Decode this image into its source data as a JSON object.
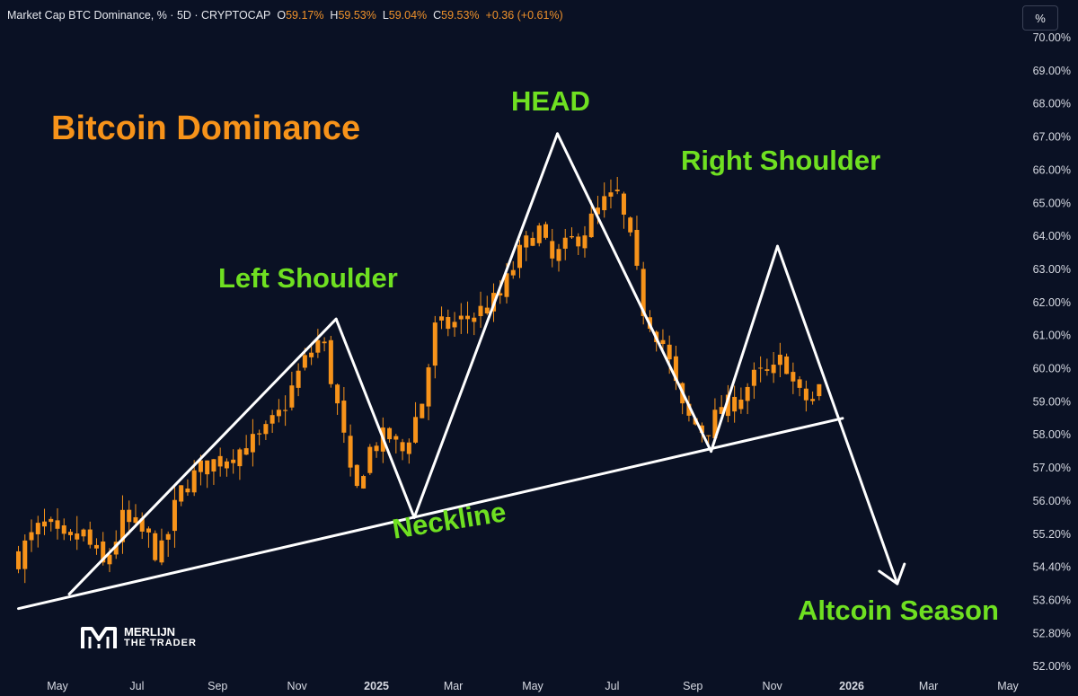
{
  "header": {
    "symbol": "Market Cap BTC Dominance, % · 5D · CRYPTOCAP",
    "open_label": "O",
    "open": "59.17%",
    "high_label": "H",
    "high": "59.53%",
    "low_label": "L",
    "low": "59.04%",
    "close_label": "C",
    "close": "59.53%",
    "change": "+0.36 (+0.61%)"
  },
  "scale_button": "%",
  "annotations": {
    "title": "Bitcoin Dominance",
    "left_shoulder": "Left Shoulder",
    "head": "HEAD",
    "right_shoulder": "Right Shoulder",
    "neckline": "Neckline",
    "altcoin_season": "Altcoin Season"
  },
  "logo": {
    "line1": "MERLIJN",
    "line2": "THE TRADER"
  },
  "colors": {
    "background": "#0a1124",
    "candle": "#f7931a",
    "pattern": "#ffffff",
    "label_green": "#6fe021",
    "title_orange": "#f7931a"
  },
  "chart_data": {
    "type": "candlestick",
    "title": "Bitcoin Dominance",
    "y_unit": "%",
    "y_ticks": [
      "70.00%",
      "69.00%",
      "68.00%",
      "67.00%",
      "66.00%",
      "65.00%",
      "64.00%",
      "63.00%",
      "62.00%",
      "61.00%",
      "60.00%",
      "59.00%",
      "58.00%",
      "57.00%",
      "56.00%",
      "55.20%",
      "54.40%",
      "53.60%",
      "52.80%",
      "52.00%"
    ],
    "x_ticks": [
      "May",
      "Jul",
      "Sep",
      "Nov",
      "2025",
      "Mar",
      "May",
      "Jul",
      "Sep",
      "Nov",
      "2026",
      "Mar",
      "May"
    ],
    "x_range": [
      "2024-04-01",
      "2026-05-15"
    ],
    "close_path": [
      [
        "2024-04-01",
        54.7
      ],
      [
        "2024-04-20",
        55.4
      ],
      [
        "2024-05-05",
        54.9
      ],
      [
        "2024-05-20",
        55.2
      ],
      [
        "2024-06-05",
        54.4
      ],
      [
        "2024-06-20",
        55.5
      ],
      [
        "2024-07-05",
        55.2
      ],
      [
        "2024-07-20",
        54.7
      ],
      [
        "2024-08-05",
        56.4
      ],
      [
        "2024-08-20",
        57.0
      ],
      [
        "2024-09-05",
        57.3
      ],
      [
        "2024-09-20",
        57.6
      ],
      [
        "2024-10-05",
        57.9
      ],
      [
        "2024-10-20",
        58.7
      ],
      [
        "2024-11-05",
        60.1
      ],
      [
        "2024-11-20",
        61.0
      ],
      [
        "2024-12-05",
        58.3
      ],
      [
        "2024-12-15",
        56.0
      ],
      [
        "2024-12-25",
        57.5
      ],
      [
        "2025-01-10",
        58.0
      ],
      [
        "2025-01-20",
        57.4
      ],
      [
        "2025-02-05",
        59.0
      ],
      [
        "2025-02-15",
        61.2
      ],
      [
        "2025-03-05",
        61.4
      ],
      [
        "2025-03-20",
        61.7
      ],
      [
        "2025-04-05",
        62.1
      ],
      [
        "2025-04-20",
        63.4
      ],
      [
        "2025-05-05",
        64.3
      ],
      [
        "2025-05-15",
        63.2
      ],
      [
        "2025-05-25",
        63.6
      ],
      [
        "2025-06-10",
        64.2
      ],
      [
        "2025-06-25",
        65.0
      ],
      [
        "2025-07-05",
        65.2
      ],
      [
        "2025-07-15",
        63.8
      ],
      [
        "2025-07-25",
        61.8
      ],
      [
        "2025-08-10",
        60.7
      ],
      [
        "2025-08-25",
        58.6
      ],
      [
        "2025-09-10",
        58.1
      ],
      [
        "2025-09-20",
        58.6
      ],
      [
        "2025-10-05",
        59.1
      ],
      [
        "2025-10-20",
        59.8
      ],
      [
        "2025-11-01",
        59.8
      ],
      [
        "2025-11-10",
        60.4
      ],
      [
        "2025-11-20",
        59.2
      ],
      [
        "2025-12-01",
        59.0
      ],
      [
        "2025-12-08",
        59.5
      ]
    ],
    "last_candle": {
      "open": 59.17,
      "high": 59.53,
      "low": 59.04,
      "close": 59.53
    },
    "pattern": "Head and Shoulders",
    "pattern_points": {
      "left_shoulder_start": [
        "2024-05-10",
        53.75
      ],
      "left_shoulder_peak": [
        "2024-12-01",
        61.5
      ],
      "neckline_low_1": [
        "2025-01-30",
        55.6
      ],
      "head_peak": [
        "2025-05-20",
        67.1
      ],
      "neckline_low_2": [
        "2025-09-15",
        57.5
      ],
      "right_shoulder_peak": [
        "2025-11-05",
        63.7
      ],
      "neckline_start": [
        "2024-04-01",
        53.4
      ],
      "neckline_end": [
        "2025-12-25",
        58.5
      ],
      "projection_end": [
        "2026-02-05",
        54.0
      ]
    }
  }
}
